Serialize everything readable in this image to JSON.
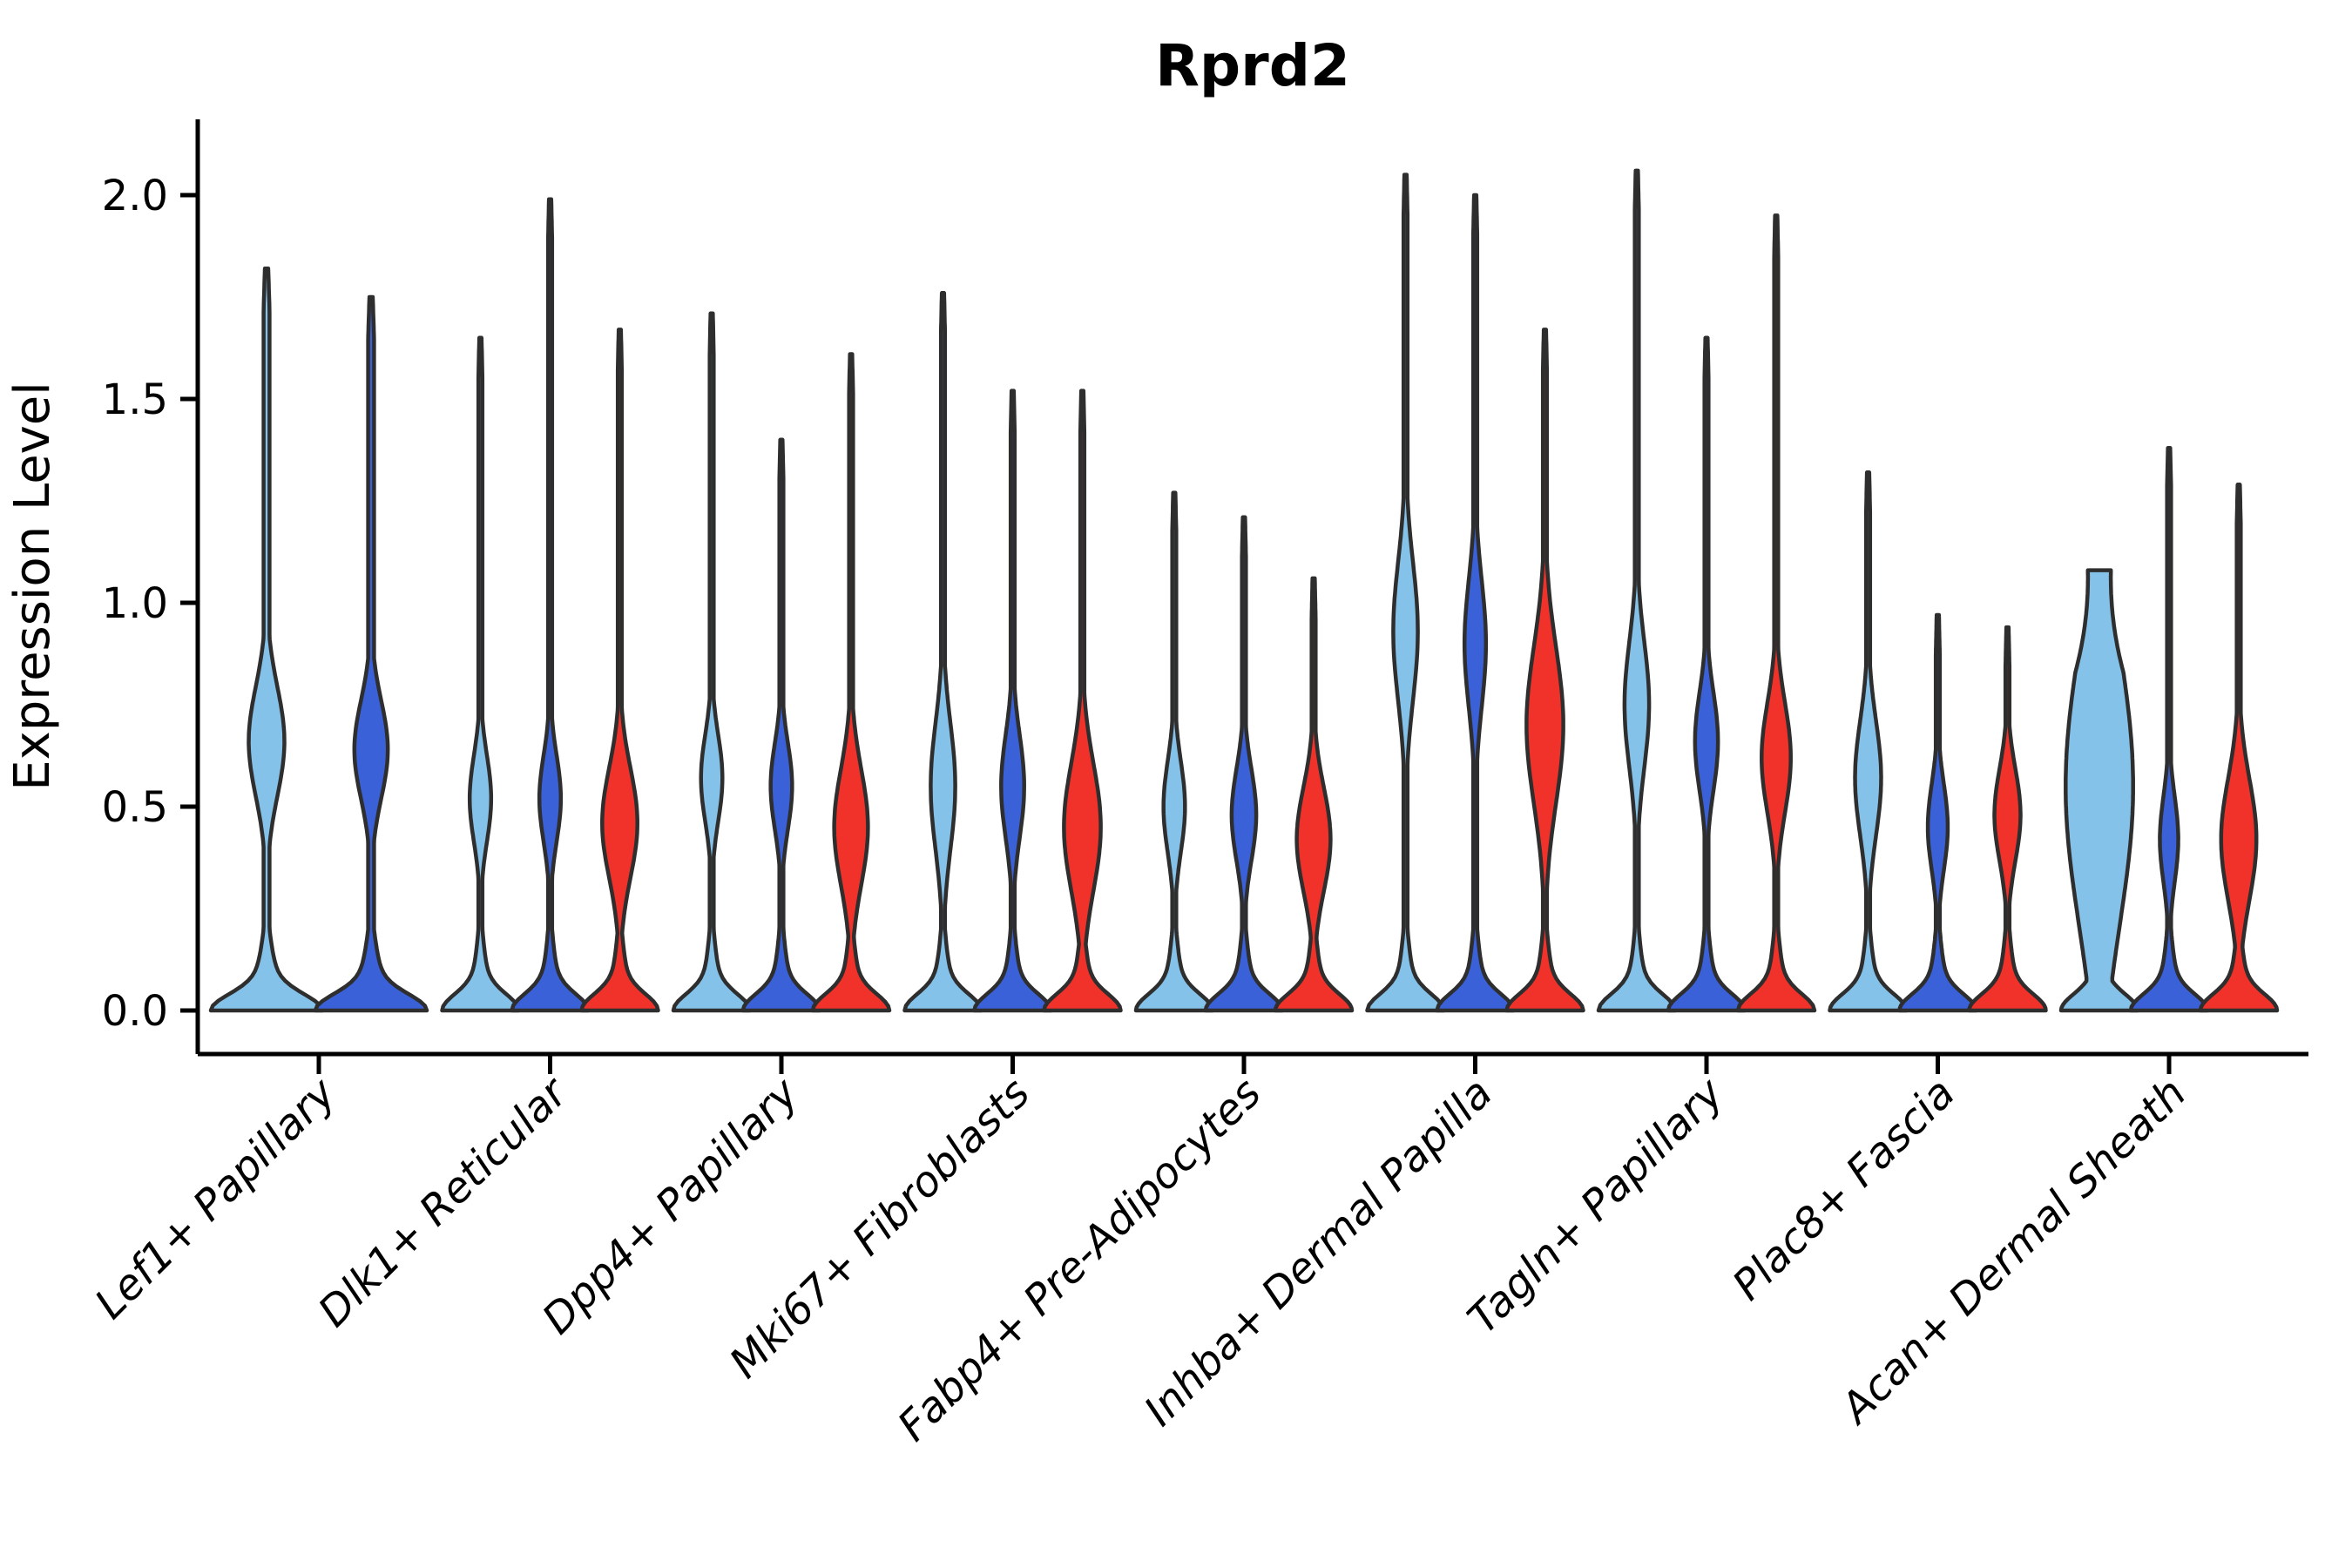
{
  "chart_data": {
    "type": "violin",
    "title": "Rprd2",
    "ylabel": "Expression Level",
    "xlabel": "",
    "grid": false,
    "legend": null,
    "ylim": [
      -0.11,
      2.17
    ],
    "ytick_labels": [
      "0.0",
      "0.5",
      "1.0",
      "1.5",
      "2.0"
    ],
    "ytick_values": [
      0.0,
      0.5,
      1.0,
      1.5,
      2.0
    ],
    "colors": {
      "light_blue": "#85C2E9",
      "royal_blue": "#3A61D8",
      "red": "#F1322B",
      "outline": "#2E2E2E",
      "text": "#000000",
      "background": "#FFFFFF"
    },
    "categories": [
      "Lef1+ Papillary",
      "Dlk1+ Reticular",
      "Dpp4+ Papillary",
      "Mki67+ Fibroblasts",
      "Fabp4+ Pre-Adipocytes",
      "Inhba+ Dermal Papilla",
      "Tagln+ Papillary",
      "Plac8+ Fascia",
      "Acan+ Dermal Sheath"
    ],
    "groups": [
      {
        "label": "Lef1+ Papillary",
        "violins": [
          {
            "color": "light_blue",
            "max": 1.82,
            "bulge_center": 0.66,
            "bulge_sigma": 0.19,
            "bulge_halfwidth": 0.32
          },
          {
            "color": "royal_blue",
            "max": 1.75,
            "bulge_center": 0.64,
            "bulge_sigma": 0.17,
            "bulge_halfwidth": 0.3
          }
        ]
      },
      {
        "label": "Dlk1+ Reticular",
        "violins": [
          {
            "color": "light_blue",
            "max": 1.65,
            "bulge_center": 0.52,
            "bulge_sigma": 0.15,
            "bulge_halfwidth": 0.28
          },
          {
            "color": "royal_blue",
            "max": 1.99,
            "bulge_center": 0.52,
            "bulge_sigma": 0.15,
            "bulge_halfwidth": 0.28
          },
          {
            "color": "red",
            "max": 1.67,
            "bulge_center": 0.46,
            "bulge_sigma": 0.19,
            "bulge_halfwidth": 0.46
          }
        ]
      },
      {
        "label": "Dpp4+ Papillary",
        "violins": [
          {
            "color": "light_blue",
            "max": 1.71,
            "bulge_center": 0.57,
            "bulge_sigma": 0.15,
            "bulge_halfwidth": 0.28
          },
          {
            "color": "royal_blue",
            "max": 1.4,
            "bulge_center": 0.55,
            "bulge_sigma": 0.15,
            "bulge_halfwidth": 0.28
          },
          {
            "color": "red",
            "max": 1.61,
            "bulge_center": 0.45,
            "bulge_sigma": 0.2,
            "bulge_halfwidth": 0.44
          }
        ]
      },
      {
        "label": "Mki67+ Fibroblasts",
        "violins": [
          {
            "color": "light_blue",
            "max": 1.76,
            "bulge_center": 0.55,
            "bulge_sigma": 0.22,
            "bulge_halfwidth": 0.32
          },
          {
            "color": "royal_blue",
            "max": 1.52,
            "bulge_center": 0.55,
            "bulge_sigma": 0.18,
            "bulge_halfwidth": 0.3
          },
          {
            "color": "red",
            "max": 1.52,
            "bulge_center": 0.45,
            "bulge_sigma": 0.22,
            "bulge_halfwidth": 0.48
          }
        ]
      },
      {
        "label": "Fabp4+ Pre-Adipocytes",
        "violins": [
          {
            "color": "light_blue",
            "max": 1.27,
            "bulge_center": 0.5,
            "bulge_sigma": 0.16,
            "bulge_halfwidth": 0.28
          },
          {
            "color": "royal_blue",
            "max": 1.21,
            "bulge_center": 0.48,
            "bulge_sigma": 0.16,
            "bulge_halfwidth": 0.32
          },
          {
            "color": "red",
            "max": 1.06,
            "bulge_center": 0.42,
            "bulge_sigma": 0.18,
            "bulge_halfwidth": 0.44
          }
        ]
      },
      {
        "label": "Inhba+ Dermal Papilla",
        "violins": [
          {
            "color": "light_blue",
            "max": 2.05,
            "bulge_center": 0.93,
            "bulge_sigma": 0.24,
            "bulge_halfwidth": 0.32
          },
          {
            "color": "royal_blue",
            "max": 2.0,
            "bulge_center": 0.9,
            "bulge_sigma": 0.22,
            "bulge_halfwidth": 0.28
          },
          {
            "color": "red",
            "max": 1.67,
            "bulge_center": 0.7,
            "bulge_sigma": 0.27,
            "bulge_halfwidth": 0.48
          }
        ]
      },
      {
        "label": "Tagln+ Papillary",
        "violins": [
          {
            "color": "light_blue",
            "max": 2.06,
            "bulge_center": 0.75,
            "bulge_sigma": 0.22,
            "bulge_halfwidth": 0.32
          },
          {
            "color": "royal_blue",
            "max": 1.65,
            "bulge_center": 0.66,
            "bulge_sigma": 0.17,
            "bulge_halfwidth": 0.3
          },
          {
            "color": "red",
            "max": 1.95,
            "bulge_center": 0.62,
            "bulge_sigma": 0.19,
            "bulge_halfwidth": 0.38
          }
        ]
      },
      {
        "label": "Plac8+ Fascia",
        "violins": [
          {
            "color": "light_blue",
            "max": 1.32,
            "bulge_center": 0.57,
            "bulge_sigma": 0.2,
            "bulge_halfwidth": 0.34
          },
          {
            "color": "royal_blue",
            "max": 0.97,
            "bulge_center": 0.45,
            "bulge_sigma": 0.15,
            "bulge_halfwidth": 0.26
          },
          {
            "color": "red",
            "max": 0.94,
            "bulge_center": 0.48,
            "bulge_sigma": 0.16,
            "bulge_halfwidth": 0.34
          }
        ]
      },
      {
        "label": "Acan+ Dermal Sheath",
        "violins": [
          {
            "color": "light_blue",
            "max": 1.08,
            "bulge_center": 0.55,
            "bulge_sigma": 0.48,
            "bulge_halfwidth": 0.88,
            "tip": 0.3,
            "tip_len": 0.25
          },
          {
            "color": "royal_blue",
            "max": 1.38,
            "bulge_center": 0.42,
            "bulge_sigma": 0.15,
            "bulge_halfwidth": 0.24
          },
          {
            "color": "red",
            "max": 1.29,
            "bulge_center": 0.42,
            "bulge_sigma": 0.21,
            "bulge_halfwidth": 0.46
          }
        ]
      }
    ]
  }
}
